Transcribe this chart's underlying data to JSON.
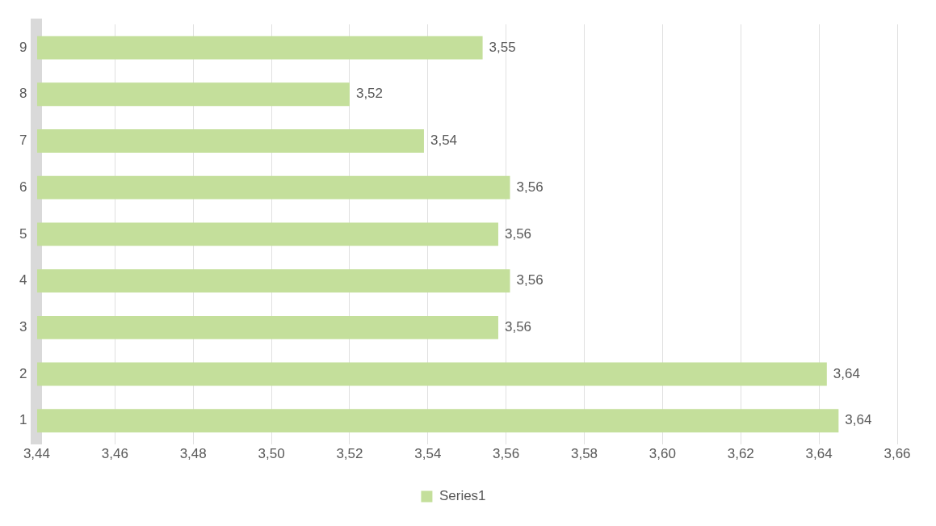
{
  "chart_data": {
    "type": "bar",
    "orientation": "horizontal",
    "categories": [
      "9",
      "8",
      "7",
      "6",
      "5",
      "4",
      "3",
      "2",
      "1"
    ],
    "series": [
      {
        "name": "Series1",
        "color": "#c4df9b",
        "values": [
          3.554,
          3.52,
          3.539,
          3.561,
          3.558,
          3.561,
          3.558,
          3.642,
          3.645
        ],
        "value_labels": [
          "3,55",
          "3,52",
          "3,54",
          "3,56",
          "3,56",
          "3,56",
          "3,56",
          "3,64",
          "3,64"
        ]
      }
    ],
    "xlim": [
      3.44,
      3.66
    ],
    "xticks": [
      {
        "value": 3.44,
        "label": "3,44"
      },
      {
        "value": 3.46,
        "label": "3,46"
      },
      {
        "value": 3.48,
        "label": "3,48"
      },
      {
        "value": 3.5,
        "label": "3,50"
      },
      {
        "value": 3.52,
        "label": "3,52"
      },
      {
        "value": 3.54,
        "label": "3,54"
      },
      {
        "value": 3.56,
        "label": "3,56"
      },
      {
        "value": 3.58,
        "label": "3,58"
      },
      {
        "value": 3.6,
        "label": "3,60"
      },
      {
        "value": 3.62,
        "label": "3,62"
      },
      {
        "value": 3.64,
        "label": "3,64"
      },
      {
        "value": 3.66,
        "label": "3,66"
      }
    ],
    "grid": "x",
    "legend": "bottom"
  }
}
